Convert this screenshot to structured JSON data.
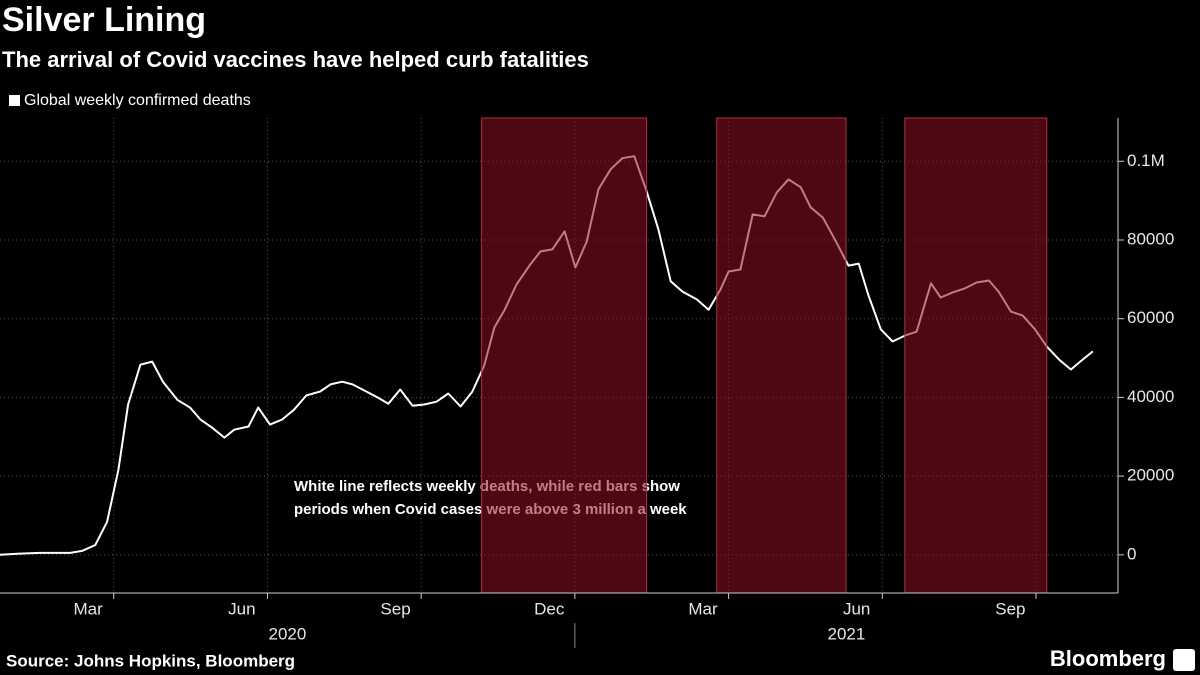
{
  "chart_data": {
    "type": "line",
    "title": "Silver Lining",
    "subtitle": "The arrival of Covid vaccines have helped curb fatalities",
    "annotation": [
      "White line reflects weekly deaths, while red bars show",
      "periods when Covid cases were above 3 million a week"
    ],
    "source": "Source: Johns Hopkins, Bloomberg",
    "brand": "Bloomberg",
    "legend_position": "top-left",
    "grid": true,
    "x": [
      0.78,
      1.17,
      1.56,
      1.86,
      2.15,
      2.38,
      2.64,
      2.87,
      3.09,
      3.28,
      3.52,
      3.75,
      3.96,
      4.24,
      4.49,
      4.69,
      4.92,
      5.16,
      5.35,
      5.63,
      5.82,
      6.05,
      6.29,
      6.52,
      6.76,
      7.03,
      7.23,
      7.46,
      7.66,
      7.93,
      8.16,
      8.36,
      8.59,
      8.83,
      9.06,
      9.3,
      9.53,
      9.77,
      10.0,
      10.23,
      10.43,
      10.63,
      10.86,
      11.13,
      11.33,
      11.56,
      11.8,
      12.01,
      12.23,
      12.46,
      12.7,
      12.93,
      13.16,
      13.4,
      13.63,
      13.87,
      14.1,
      14.38,
      14.61,
      14.84,
      15.0,
      15.23,
      15.47,
      15.7,
      15.94,
      16.17,
      16.41,
      16.6,
      16.84,
      17.07,
      17.34,
      17.54,
      17.73,
      17.97,
      18.2,
      18.44,
      18.67,
      18.95,
      19.14,
      19.38,
      19.61,
      19.84,
      20.08,
      20.27,
      20.51,
      20.74,
      20.98,
      21.21,
      21.45,
      21.68,
      21.91,
      22.11
    ],
    "series": [
      {
        "name": "Global weekly confirmed deaths",
        "color": "#ffffff",
        "values": [
          0,
          300,
          500,
          500,
          500,
          1000,
          2500,
          8400,
          21600,
          38200,
          48300,
          49100,
          44000,
          39400,
          37400,
          34400,
          32300,
          29800,
          31800,
          32600,
          37400,
          33100,
          34400,
          36900,
          40500,
          41500,
          43300,
          44000,
          43300,
          41500,
          39900,
          38400,
          42000,
          37900,
          38200,
          38900,
          41000,
          37700,
          41500,
          48100,
          57800,
          62300,
          68700,
          73800,
          77100,
          77600,
          82200,
          73000,
          79600,
          92900,
          98000,
          100800,
          101300,
          92400,
          82700,
          69500,
          66900,
          64900,
          62300,
          67400,
          72000,
          72500,
          86500,
          86000,
          92100,
          95400,
          93400,
          88300,
          85700,
          80200,
          73500,
          74000,
          65900,
          57300,
          54200,
          55700,
          56700,
          69000,
          65400,
          66700,
          67700,
          69200,
          69700,
          66900,
          61800,
          60800,
          57300,
          52900,
          49600,
          47100,
          49600,
          51700
        ]
      }
    ],
    "shaded_periods": [
      {
        "start": 10.18,
        "end": 13.4
      },
      {
        "start": 14.77,
        "end": 17.29
      },
      {
        "start": 18.44,
        "end": 21.21
      }
    ],
    "shade_color": "#8c0f23",
    "xlim": [
      0.78,
      22.6
    ],
    "xticks": [
      {
        "value": 2.5,
        "label": "Mar"
      },
      {
        "value": 5.5,
        "label": "Jun"
      },
      {
        "value": 8.5,
        "label": "Sep"
      },
      {
        "value": 11.5,
        "label": "Dec"
      },
      {
        "value": 14.5,
        "label": "Mar"
      },
      {
        "value": 17.5,
        "label": "Jun"
      },
      {
        "value": 20.5,
        "label": "Sep"
      }
    ],
    "xgrid": [
      3,
      6,
      9,
      12,
      15,
      18,
      21
    ],
    "years": [
      {
        "label": "2020",
        "start": 0,
        "end": 12
      },
      {
        "label": "2021",
        "start": 12,
        "end": 24
      }
    ],
    "ylim": [
      -9700,
      111000
    ],
    "yticks": [
      0,
      20000,
      40000,
      60000,
      80000,
      {
        "value": 100000,
        "label": "0.1M"
      }
    ]
  }
}
